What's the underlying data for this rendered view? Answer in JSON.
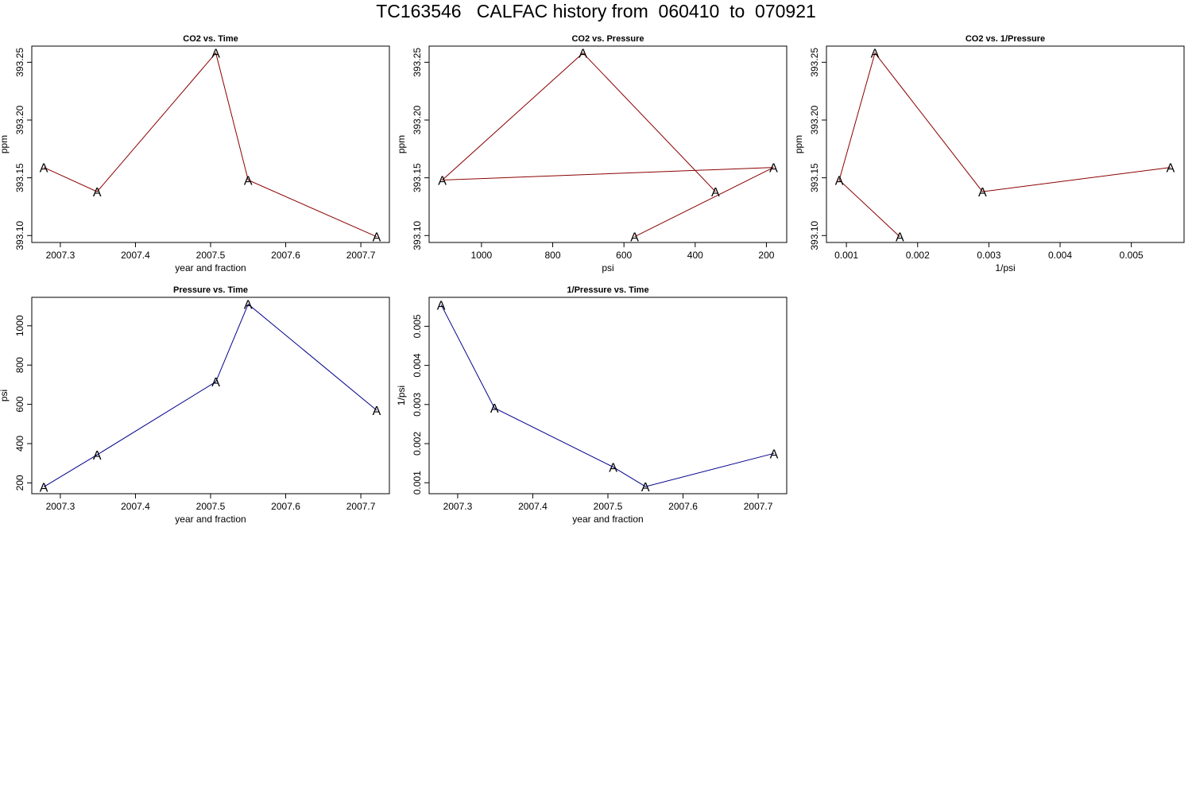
{
  "title": "TC163546   CALFAC history from  060410  to  070921",
  "colors": {
    "co2": "#8b0000",
    "pressure": "#00008b",
    "axis": "#000000"
  },
  "marker_label": "A",
  "chart_data": [
    {
      "id": "co2-vs-time",
      "type": "line",
      "title": "CO2 vs. Time",
      "xlabel": "year and fraction",
      "ylabel": "ppm",
      "x": [
        2007.278,
        2007.349,
        2007.507,
        2007.55,
        2007.721
      ],
      "y": [
        393.159,
        393.138,
        393.258,
        393.148,
        393.099
      ],
      "xlim": [
        2007.262,
        2007.738
      ],
      "ylim": [
        393.094,
        393.264
      ],
      "xreverse": false,
      "xticks": [
        2007.3,
        2007.4,
        2007.5,
        2007.6,
        2007.7
      ],
      "xtick_labels": [
        "2007.3",
        "2007.4",
        "2007.5",
        "2007.6",
        "2007.7"
      ],
      "yticks": [
        393.1,
        393.15,
        393.2,
        393.25
      ],
      "ytick_labels": [
        "393.10",
        "393.15",
        "393.20",
        "393.25"
      ],
      "color": "#8b0000"
    },
    {
      "id": "co2-vs-pressure",
      "type": "line",
      "title": "CO2 vs. Pressure",
      "xlabel": "psi",
      "ylabel": "ppm",
      "x": [
        1110,
        715,
        570,
        343,
        180
      ],
      "y": [
        393.148,
        393.258,
        393.099,
        393.138,
        393.159
      ],
      "xlim": [
        1147,
        143
      ],
      "ylim": [
        393.094,
        393.264
      ],
      "xreverse": true,
      "xticks": [
        1000,
        800,
        600,
        400,
        200
      ],
      "xtick_labels": [
        "1000",
        "800",
        "600",
        "400",
        "200"
      ],
      "yticks": [
        393.1,
        393.15,
        393.2,
        393.25
      ],
      "ytick_labels": [
        "393.10",
        "393.15",
        "393.20",
        "393.25"
      ],
      "path_order": [
        3,
        1,
        0,
        4,
        2
      ],
      "color": "#8b0000"
    },
    {
      "id": "co2-vs-inv-pressure",
      "type": "line",
      "title": "CO2 vs. 1/Pressure",
      "xlabel": "1/psi",
      "ylabel": "ppm",
      "x": [
        0.0009,
        0.0014,
        0.00175,
        0.00291,
        0.00555
      ],
      "y": [
        393.148,
        393.258,
        393.099,
        393.138,
        393.159
      ],
      "xlim": [
        0.00072,
        0.00574
      ],
      "ylim": [
        393.094,
        393.264
      ],
      "xreverse": false,
      "xticks": [
        0.001,
        0.002,
        0.003,
        0.004,
        0.005
      ],
      "xtick_labels": [
        "0.001",
        "0.002",
        "0.003",
        "0.004",
        "0.005"
      ],
      "yticks": [
        393.1,
        393.15,
        393.2,
        393.25
      ],
      "ytick_labels": [
        "393.10",
        "393.15",
        "393.20",
        "393.25"
      ],
      "path_order": [
        2,
        0,
        1,
        3,
        4
      ],
      "color": "#8b0000"
    },
    {
      "id": "pressure-vs-time",
      "type": "line",
      "title": "Pressure vs. Time",
      "xlabel": "year and fraction",
      "ylabel": "psi",
      "x": [
        2007.278,
        2007.349,
        2007.507,
        2007.55,
        2007.721
      ],
      "y": [
        180,
        343,
        715,
        1110,
        570
      ],
      "xlim": [
        2007.262,
        2007.738
      ],
      "ylim": [
        145,
        1145
      ],
      "xreverse": false,
      "xticks": [
        2007.3,
        2007.4,
        2007.5,
        2007.6,
        2007.7
      ],
      "xtick_labels": [
        "2007.3",
        "2007.4",
        "2007.5",
        "2007.6",
        "2007.7"
      ],
      "yticks": [
        200,
        400,
        600,
        800,
        1000
      ],
      "ytick_labels": [
        "200",
        "400",
        "600",
        "800",
        "1000"
      ],
      "color": "#00008b"
    },
    {
      "id": "inv-pressure-vs-time",
      "type": "line",
      "title": "1/Pressure vs. Time",
      "xlabel": "year and fraction",
      "ylabel": "1/psi",
      "x": [
        2007.278,
        2007.349,
        2007.507,
        2007.55,
        2007.721
      ],
      "y": [
        0.00555,
        0.00291,
        0.0014,
        0.0009,
        0.00175
      ],
      "xlim": [
        2007.262,
        2007.738
      ],
      "ylim": [
        0.00072,
        0.00574
      ],
      "xreverse": false,
      "xticks": [
        2007.3,
        2007.4,
        2007.5,
        2007.6,
        2007.7
      ],
      "xtick_labels": [
        "2007.3",
        "2007.4",
        "2007.5",
        "2007.6",
        "2007.7"
      ],
      "yticks": [
        0.001,
        0.002,
        0.003,
        0.004,
        0.005
      ],
      "ytick_labels": [
        "0.001",
        "0.002",
        "0.003",
        "0.004",
        "0.005"
      ],
      "color": "#00008b"
    }
  ]
}
